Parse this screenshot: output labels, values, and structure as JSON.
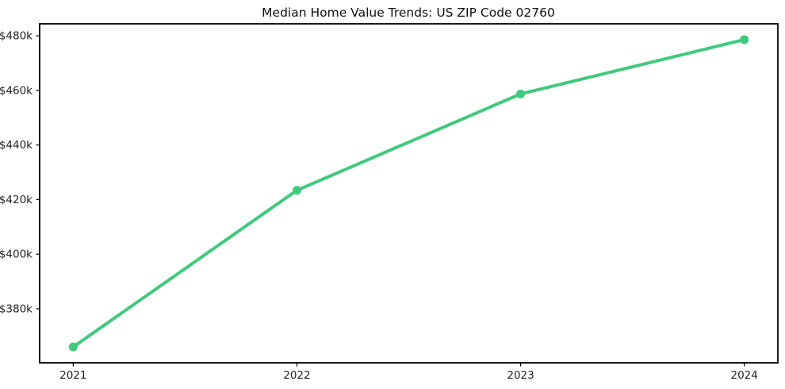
{
  "page": {
    "background": "#ffffff"
  },
  "chart_data": {
    "type": "line",
    "title": "Median Home Value Trends: US ZIP Code 02760",
    "x": [
      2021,
      2022,
      2023,
      2024
    ],
    "categories": [
      "2021",
      "2022",
      "2023",
      "2024"
    ],
    "series": [
      {
        "name": "median-home-value",
        "color": "#41c97d",
        "marker": "circle",
        "marker_radius": 5.5,
        "line_width": 4,
        "values": [
          366000,
          423400,
          458700,
          478600
        ]
      }
    ],
    "xlabel": "",
    "ylabel": "",
    "xlim": [
      2020.85,
      2024.15
    ],
    "ylim": [
      360200,
      484400
    ],
    "yticks": [
      380000,
      400000,
      420000,
      440000,
      460000,
      480000
    ],
    "ytick_labels": [
      "$380k",
      "$400k",
      "$420k",
      "$440k",
      "$460k",
      "$480k"
    ],
    "grid": false,
    "legend": "none",
    "frame_color": "#000000",
    "tick_color": "#000000",
    "text_color": "#222222"
  }
}
